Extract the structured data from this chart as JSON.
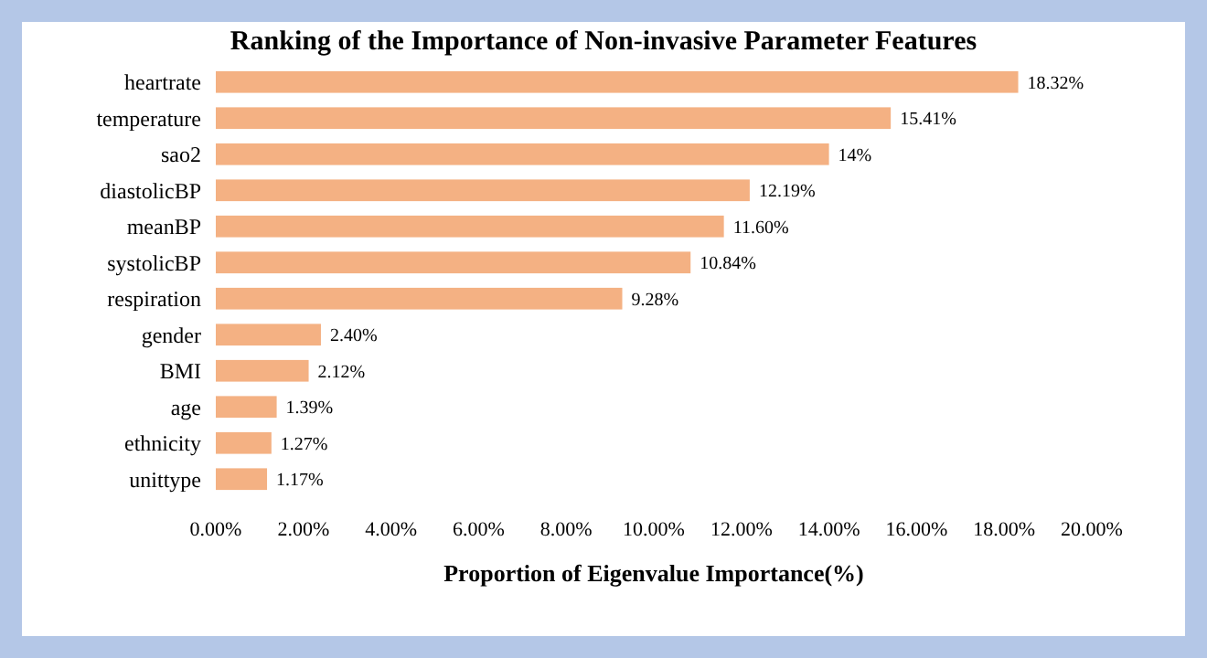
{
  "chart_data": {
    "type": "bar",
    "orientation": "horizontal",
    "title": "Ranking of the Importance of Non-invasive Parameter Features",
    "xlabel": "Proportion of Eigenvalue Importance(%)",
    "categories": [
      "heartrate",
      "temperature",
      "sao2",
      "diastolicBP",
      "meanBP",
      "systolicBP",
      "respiration",
      "gender",
      "BMI",
      "age",
      "ethnicity",
      "unittype"
    ],
    "values": [
      18.32,
      15.41,
      14,
      12.19,
      11.6,
      10.84,
      9.28,
      2.4,
      2.12,
      1.39,
      1.27,
      1.17
    ],
    "value_labels": [
      "18.32%",
      "15.41%",
      "14%",
      "12.19%",
      "11.60%",
      "10.84%",
      "9.28%",
      "2.40%",
      "2.12%",
      "1.39%",
      "1.27%",
      "1.17%"
    ],
    "color": "#f4b183",
    "xlim": [
      0,
      20
    ],
    "xticks": [
      {
        "value": 0,
        "label": "0.00%"
      },
      {
        "value": 2,
        "label": "2.00%"
      },
      {
        "value": 4,
        "label": "4.00%"
      },
      {
        "value": 6,
        "label": "6.00%"
      },
      {
        "value": 8,
        "label": "8.00%"
      },
      {
        "value": 10,
        "label": "10.00%"
      },
      {
        "value": 12,
        "label": "12.00%"
      },
      {
        "value": 14,
        "label": "14.00%"
      },
      {
        "value": 16,
        "label": "16.00%"
      },
      {
        "value": 18,
        "label": "18.00%"
      },
      {
        "value": 20,
        "label": "20.00%"
      }
    ],
    "grid": false
  }
}
